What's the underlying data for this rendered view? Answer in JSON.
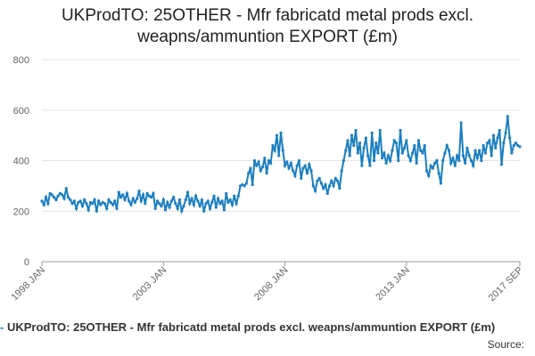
{
  "chart_data": {
    "type": "line",
    "title": "UKProdTO: 25OTHER - Mfr fabricatd metal prods excl. weapns/ammuntion EXPORT (£m)",
    "source_label": "Source:",
    "categories": [
      "1998 JAN",
      null,
      null,
      null,
      null,
      null,
      null,
      null,
      null,
      null,
      null,
      null,
      null,
      null,
      null,
      null,
      null,
      null,
      null,
      null,
      null,
      null,
      null,
      null,
      null,
      null,
      null,
      null,
      null,
      null,
      null,
      null,
      null,
      null,
      null,
      null,
      null,
      null,
      null,
      null,
      null,
      null,
      null,
      null,
      null,
      null,
      null,
      null,
      null,
      null,
      null,
      null,
      null,
      null,
      null,
      null,
      null,
      null,
      null,
      null,
      "2003 JAN",
      null,
      null,
      null,
      null,
      null,
      null,
      null,
      null,
      null,
      null,
      null,
      null,
      null,
      null,
      null,
      null,
      null,
      null,
      null,
      null,
      null,
      null,
      null,
      null,
      null,
      null,
      null,
      null,
      null,
      null,
      null,
      null,
      null,
      null,
      null,
      null,
      null,
      null,
      null,
      null,
      null,
      null,
      null,
      null,
      null,
      null,
      null,
      null,
      null,
      null,
      null,
      null,
      null,
      null,
      null,
      null,
      null,
      null,
      null,
      "2008 JAN",
      null,
      null,
      null,
      null,
      null,
      null,
      null,
      null,
      null,
      null,
      null,
      null,
      null,
      null,
      null,
      null,
      null,
      null,
      null,
      null,
      null,
      null,
      null,
      null,
      null,
      null,
      null,
      null,
      null,
      null,
      null,
      null,
      null,
      null,
      null,
      null,
      null,
      null,
      null,
      null,
      null,
      null,
      null,
      null,
      null,
      null,
      null,
      null,
      null,
      null,
      null,
      null,
      null,
      null,
      null,
      null,
      null,
      null,
      null,
      "2013 JAN",
      null,
      null,
      null,
      null,
      null,
      null,
      null,
      null,
      null,
      null,
      null,
      null,
      null,
      null,
      null,
      null,
      null,
      null,
      null,
      null,
      null,
      null,
      null,
      null,
      null,
      null,
      null,
      null,
      null,
      null,
      null,
      null,
      null,
      null,
      null,
      null,
      null,
      null,
      null,
      null,
      null,
      null,
      null,
      null,
      null,
      null,
      null,
      null,
      null,
      null,
      null,
      null,
      null,
      null,
      null,
      "2017 SEP"
    ],
    "series": [
      {
        "name": "UKProdTO: 25OTHER - Mfr fabricatd metal prods excl. weapns/ammuntion EXPORT (£m)",
        "color": "#1a7fc1",
        "values": [
          240,
          225,
          255,
          230,
          270,
          265,
          255,
          245,
          260,
          270,
          265,
          250,
          290,
          255,
          245,
          230,
          240,
          210,
          235,
          240,
          220,
          245,
          230,
          205,
          235,
          230,
          245,
          200,
          240,
          225,
          235,
          230,
          210,
          245,
          235,
          225,
          240,
          210,
          275,
          255,
          265,
          245,
          270,
          240,
          225,
          250,
          235,
          250,
          280,
          240,
          265,
          230,
          270,
          260,
          255,
          270,
          210,
          240,
          230,
          220,
          245,
          205,
          235,
          215,
          240,
          255,
          230,
          210,
          245,
          200,
          220,
          245,
          275,
          230,
          250,
          225,
          260,
          240,
          220,
          245,
          200,
          230,
          240,
          210,
          235,
          260,
          215,
          250,
          230,
          240,
          205,
          270,
          235,
          245,
          225,
          260,
          230,
          260,
          300,
          305,
          300,
          310,
          350,
          370,
          305,
          400,
          380,
          395,
          360,
          375,
          410,
          350,
          400,
          390,
          460,
          440,
          500,
          420,
          510,
          440,
          380,
          395,
          370,
          390,
          360,
          340,
          380,
          400,
          330,
          370,
          380,
          350,
          385,
          360,
          300,
          280,
          320,
          330,
          310,
          290,
          305,
          270,
          300,
          320,
          300,
          330,
          320,
          290,
          360,
          400,
          440,
          480,
          420,
          500,
          460,
          520,
          430,
          470,
          380,
          450,
          490,
          420,
          380,
          510,
          400,
          470,
          430,
          520,
          410,
          430,
          390,
          420,
          400,
          440,
          480,
          470,
          400,
          520,
          430,
          450,
          480,
          420,
          400,
          430,
          460,
          390,
          480,
          440,
          430,
          460,
          360,
          340,
          380,
          370,
          390,
          400,
          350,
          310,
          400,
          430,
          460,
          440,
          390,
          410,
          380,
          420,
          400,
          550,
          420,
          390,
          450,
          420,
          400,
          380,
          440,
          410,
          440,
          400,
          460,
          430,
          470,
          480,
          420,
          500,
          450,
          490,
          520,
          385,
          470,
          510,
          575,
          490,
          430,
          460,
          470,
          460,
          455
        ]
      }
    ],
    "ylim": [
      0,
      800
    ],
    "yticks": [
      0,
      200,
      400,
      600,
      800
    ],
    "grid": true
  }
}
